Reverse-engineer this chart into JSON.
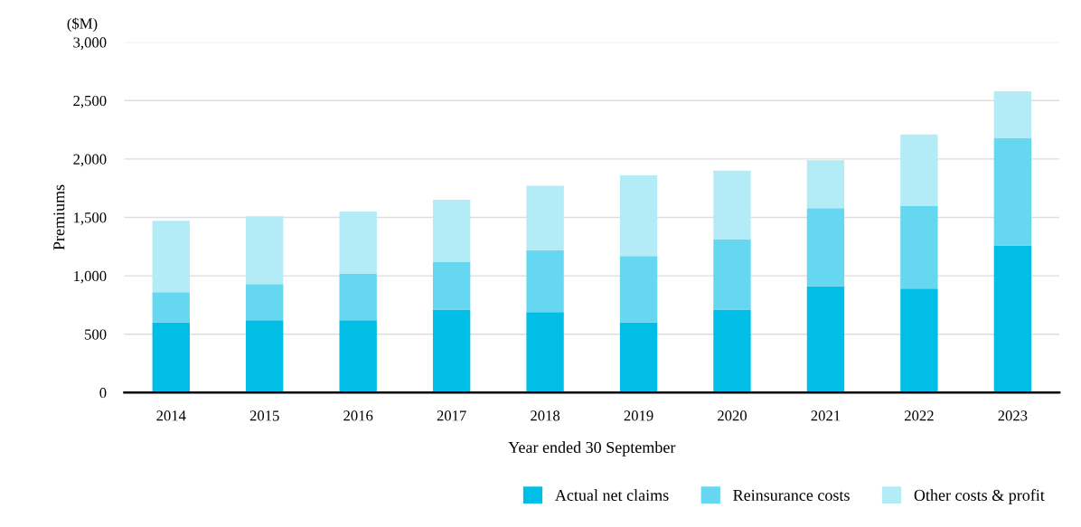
{
  "chart_data": {
    "type": "bar",
    "stacked": true,
    "xlabel": "Year ended 30 September",
    "ylabel": "Premiums",
    "annotations": [
      "($M)"
    ],
    "categories": [
      "2014",
      "2015",
      "2016",
      "2017",
      "2018",
      "2019",
      "2020",
      "2021",
      "2022",
      "2023"
    ],
    "series": [
      {
        "name": "Actual net claims",
        "color": "#00bee6",
        "values": [
          600,
          620,
          620,
          710,
          690,
          600,
          710,
          910,
          890,
          1260
        ]
      },
      {
        "name": "Reinsurance costs",
        "color": "#66d7f0",
        "values": [
          260,
          310,
          400,
          410,
          530,
          570,
          600,
          670,
          710,
          920
        ]
      },
      {
        "name": "Other costs & profit",
        "color": "#b3ebf7",
        "values": [
          610,
          580,
          530,
          530,
          550,
          690,
          590,
          410,
          610,
          400
        ]
      }
    ],
    "ylim": [
      0,
      3000
    ],
    "yticks": [
      {
        "value": 0,
        "label": "0"
      },
      {
        "value": 500,
        "label": "500"
      },
      {
        "value": 1000,
        "label": "1,000"
      },
      {
        "value": 1500,
        "label": "1,500"
      },
      {
        "value": 2000,
        "label": "2,000"
      },
      {
        "value": 2500,
        "label": "2,500"
      },
      {
        "value": 3000,
        "label": "3,000"
      }
    ],
    "grid": "y",
    "legend": "bottom right"
  }
}
